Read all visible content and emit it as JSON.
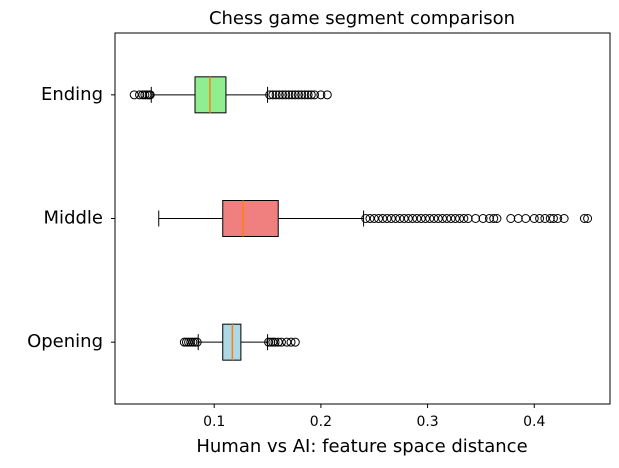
{
  "chart_data": {
    "type": "boxplot",
    "title": "Chess game segment comparison",
    "x_label": "Human vs AI: feature space distance",
    "categories": [
      "Opening",
      "Middle",
      "Ending"
    ],
    "boxes": [
      {
        "color": "#add8e6",
        "whislo": 0.085,
        "q1": 0.108,
        "med": 0.117,
        "q3": 0.125,
        "whishi": 0.15,
        "fliers": [
          0.072,
          0.074,
          0.076,
          0.078,
          0.08,
          0.082,
          0.084,
          0.151,
          0.153,
          0.155,
          0.157,
          0.16,
          0.163,
          0.168,
          0.172,
          0.176
        ]
      },
      {
        "color": "#f08080",
        "whislo": 0.048,
        "q1": 0.108,
        "med": 0.127,
        "q3": 0.16,
        "whishi": 0.24,
        "fliers": [
          0.242,
          0.246,
          0.25,
          0.254,
          0.258,
          0.262,
          0.266,
          0.27,
          0.274,
          0.278,
          0.282,
          0.286,
          0.29,
          0.294,
          0.298,
          0.302,
          0.306,
          0.31,
          0.314,
          0.318,
          0.322,
          0.326,
          0.33,
          0.334,
          0.338,
          0.345,
          0.352,
          0.358,
          0.362,
          0.365,
          0.378,
          0.385,
          0.392,
          0.4,
          0.405,
          0.41,
          0.415,
          0.418,
          0.422,
          0.428,
          0.447,
          0.45
        ]
      },
      {
        "color": "#90ee90",
        "whislo": 0.041,
        "q1": 0.082,
        "med": 0.096,
        "q3": 0.111,
        "whishi": 0.15,
        "fliers": [
          0.025,
          0.03,
          0.033,
          0.035,
          0.037,
          0.039,
          0.04,
          0.152,
          0.155,
          0.158,
          0.161,
          0.164,
          0.167,
          0.17,
          0.173,
          0.176,
          0.179,
          0.182,
          0.185,
          0.188,
          0.191,
          0.194,
          0.2,
          0.206
        ]
      }
    ],
    "median_color": "#ff7f0e",
    "xlim": [
      0.007,
      0.471
    ],
    "xticks": [
      0.1,
      0.2,
      0.3,
      0.4
    ]
  }
}
